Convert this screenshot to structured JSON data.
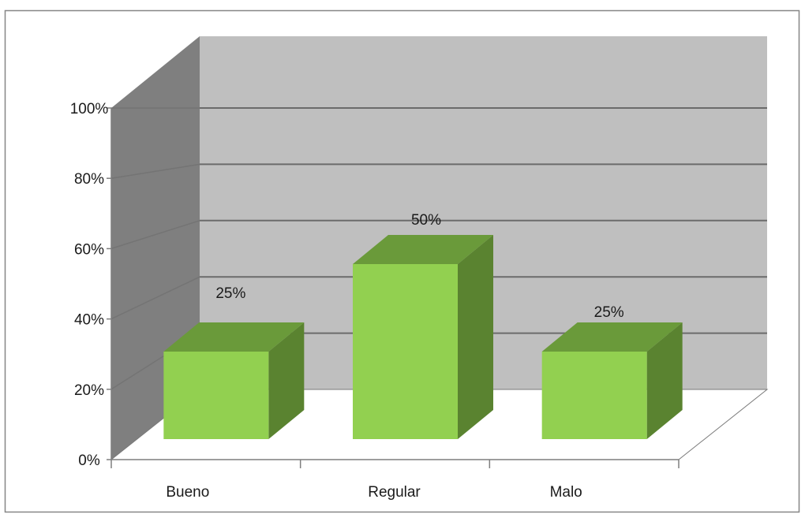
{
  "chart_data": {
    "type": "bar",
    "style": "3d-column",
    "categories": [
      "Bueno",
      "Regular",
      "Malo"
    ],
    "values": [
      0.25,
      0.5,
      0.25
    ],
    "data_labels": [
      "25%",
      "50%",
      "25%"
    ],
    "title": "",
    "xlabel": "",
    "ylabel": "",
    "ylim": [
      0,
      1
    ],
    "yticks": [
      0,
      0.2,
      0.4,
      0.6,
      0.8,
      1.0
    ],
    "ytick_labels": [
      "0%",
      "20%",
      "40%",
      "60%",
      "80%",
      "100%"
    ],
    "grid": true,
    "legend": "none",
    "colors": {
      "bar_front": "#92d050",
      "bar_top": "#6a9a3a",
      "bar_side": "#5a8330",
      "wall_back": "#bfbfbf",
      "wall_side": "#7f7f7f",
      "floor": "#ffffff",
      "gridline": "#6b6b6b",
      "frame_border": "#868686"
    }
  }
}
